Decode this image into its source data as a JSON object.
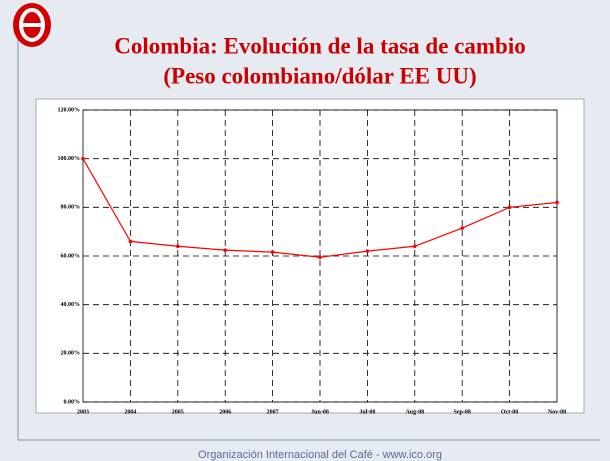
{
  "chart_data": {
    "type": "line",
    "title": "Colombia:  Evolución de la tasa de cambio",
    "subtitle": "(Peso colombiano/dólar EE UU)",
    "footer": "Organización Internacional del Café  -  www.ico.org",
    "categories": [
      "2003",
      "2004",
      "2005",
      "2006",
      "2007",
      "Jun-08",
      "Jul-08",
      "Aug-08",
      "Sep-08",
      "Oct-08",
      "Nov-08"
    ],
    "values": [
      100,
      66,
      64,
      62.4,
      61.6,
      59.5,
      62,
      64,
      71.5,
      80,
      82
    ],
    "color": "#ff0000",
    "ylim": [
      0,
      120
    ],
    "yticks": [
      {
        "value": 0,
        "label": "0.00%"
      },
      {
        "value": 20,
        "label": "20.00%"
      },
      {
        "value": 40,
        "label": "40.00%"
      },
      {
        "value": 60,
        "label": "60.00%"
      },
      {
        "value": 80,
        "label": "80.00%"
      },
      {
        "value": 100,
        "label": "100.00%"
      },
      {
        "value": 120,
        "label": "120.00%"
      }
    ],
    "grid": true
  }
}
